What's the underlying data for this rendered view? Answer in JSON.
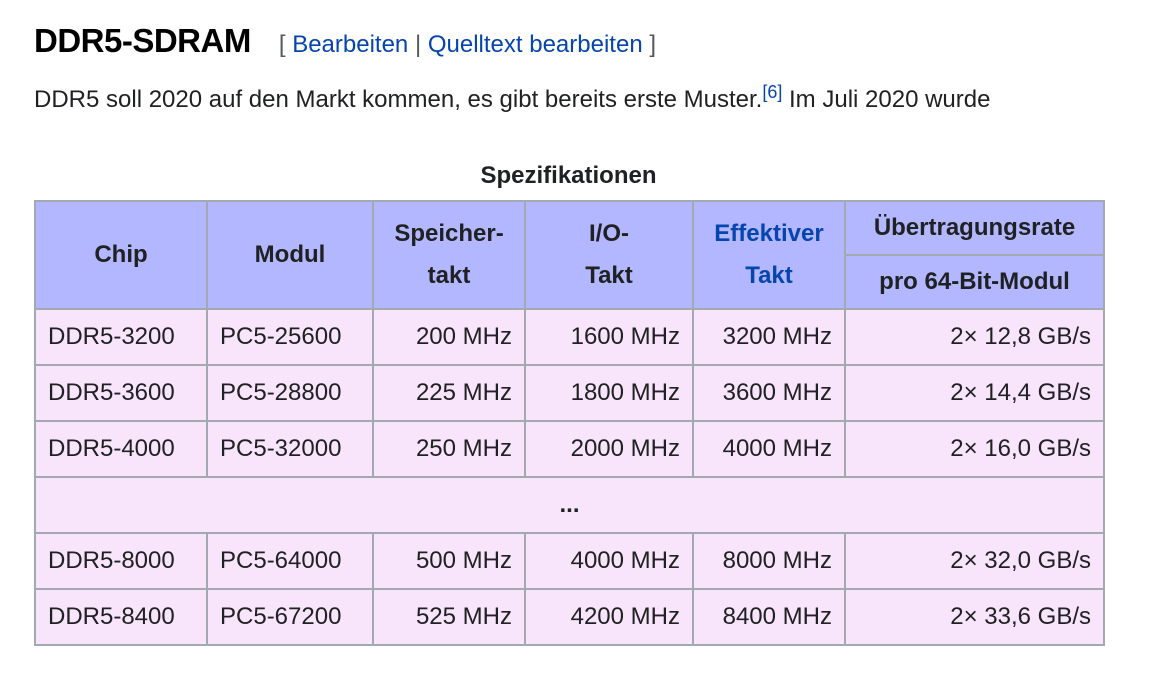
{
  "section": {
    "title": "DDR5-SDRAM",
    "edit_open": "[",
    "edit_link": "Bearbeiten",
    "separator": "|",
    "source_edit_link": "Quelltext bearbeiten",
    "edit_close": "]"
  },
  "paragraph": {
    "text_before": "DDR5 soll 2020 auf den Markt kommen, es gibt bereits erste Muster.",
    "reference": "[6]",
    "text_after": " Im Juli 2020 wurde"
  },
  "table": {
    "caption": "Spezifikationen",
    "headers": {
      "chip": "Chip",
      "modul": "Modul",
      "speichertakt_line1": "Speicher-",
      "speichertakt_line2": "takt",
      "io_line1": "I/O-",
      "io_line2": "Takt",
      "effektiv_line1": "Effektiver",
      "effektiv_line2": "Takt",
      "rate": "Übertragungsrate",
      "rate_sub": "pro 64-Bit-Modul"
    },
    "rows_top": [
      {
        "chip": "DDR5-3200",
        "modul": "PC5-25600",
        "speicher": "200 MHz",
        "io": "1600 MHz",
        "eff": "3200 MHz",
        "rate": "2× 12,8 GB/s"
      },
      {
        "chip": "DDR5-3600",
        "modul": "PC5-28800",
        "speicher": "225 MHz",
        "io": "1800 MHz",
        "eff": "3600 MHz",
        "rate": "2× 14,4 GB/s"
      },
      {
        "chip": "DDR5-4000",
        "modul": "PC5-32000",
        "speicher": "250 MHz",
        "io": "2000 MHz",
        "eff": "4000 MHz",
        "rate": "2× 16,0 GB/s"
      }
    ],
    "ellipsis": "...",
    "rows_bottom": [
      {
        "chip": "DDR5-8000",
        "modul": "PC5-64000",
        "speicher": "500 MHz",
        "io": "4000 MHz",
        "eff": "8000 MHz",
        "rate": "2× 32,0 GB/s"
      },
      {
        "chip": "DDR5-8400",
        "modul": "PC5-67200",
        "speicher": "525 MHz",
        "io": "4200 MHz",
        "eff": "8400 MHz",
        "rate": "2× 33,6 GB/s"
      }
    ]
  }
}
